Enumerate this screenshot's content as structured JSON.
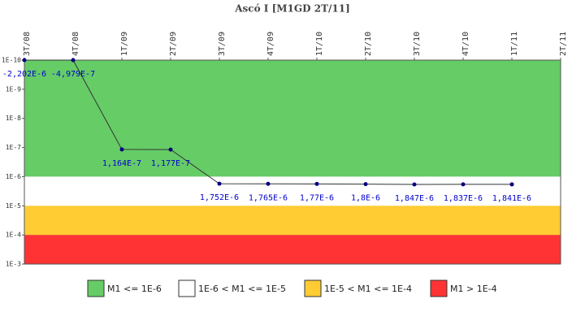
{
  "chart_data": {
    "type": "line",
    "title": "Ascó I [M1GD 2T/11]",
    "categories": [
      "3T/08",
      "4T/08",
      "1T/09",
      "2T/09",
      "3T/09",
      "4T/09",
      "1T/10",
      "2T/10",
      "3T/10",
      "4T/10",
      "1T/11",
      "2T/11"
    ],
    "series": [
      {
        "name": "M1",
        "color": "#000080",
        "line_color": "#333333",
        "label_color": "#0000cc",
        "values": [
          -2.202e-06,
          -4.979e-07,
          1.164e-07,
          1.177e-07,
          1.752e-06,
          1.765e-06,
          1.77e-06,
          1.8e-06,
          1.847e-06,
          1.837e-06,
          1.841e-06,
          null
        ],
        "value_labels": [
          "-2,202E-6",
          "-4,979E-7",
          "1,164E-7",
          "1,177E-7",
          "1,752E-6",
          "1,765E-6",
          "1,77E-6",
          "1,8E-6",
          "1,847E-6",
          "1,837E-6",
          "1,841E-6",
          null
        ]
      }
    ],
    "ylim": [
      1e-10,
      0.001
    ],
    "yticks": [
      {
        "value": 1e-10,
        "label": "1E-10"
      },
      {
        "value": 1e-09,
        "label": "1E-9"
      },
      {
        "value": 1e-08,
        "label": "1E-8"
      },
      {
        "value": 1e-07,
        "label": "1E-7"
      },
      {
        "value": 1e-06,
        "label": "1E-6"
      },
      {
        "value": 1e-05,
        "label": "1E-5"
      },
      {
        "value": 0.0001,
        "label": "1E-4"
      },
      {
        "value": 0.001,
        "label": "1E-3"
      }
    ],
    "log_y": true,
    "y_inverted": true,
    "x_axis": "top",
    "legend": "bottom",
    "bands": [
      {
        "name": "M1 <= 1E-6",
        "color": "#66cc66",
        "from": 1e-10,
        "to": 1e-06
      },
      {
        "name": "1E-6 < M1 <= 1E-5",
        "color": "#ffffff",
        "from": 1e-06,
        "to": 1e-05
      },
      {
        "name": "1E-5 < M1 <= 1E-4",
        "color": "#ffcc33",
        "from": 1e-05,
        "to": 0.0001
      },
      {
        "name": "M1 > 1E-4",
        "color": "#ff3333",
        "from": 0.0001,
        "to": 0.001
      }
    ]
  }
}
